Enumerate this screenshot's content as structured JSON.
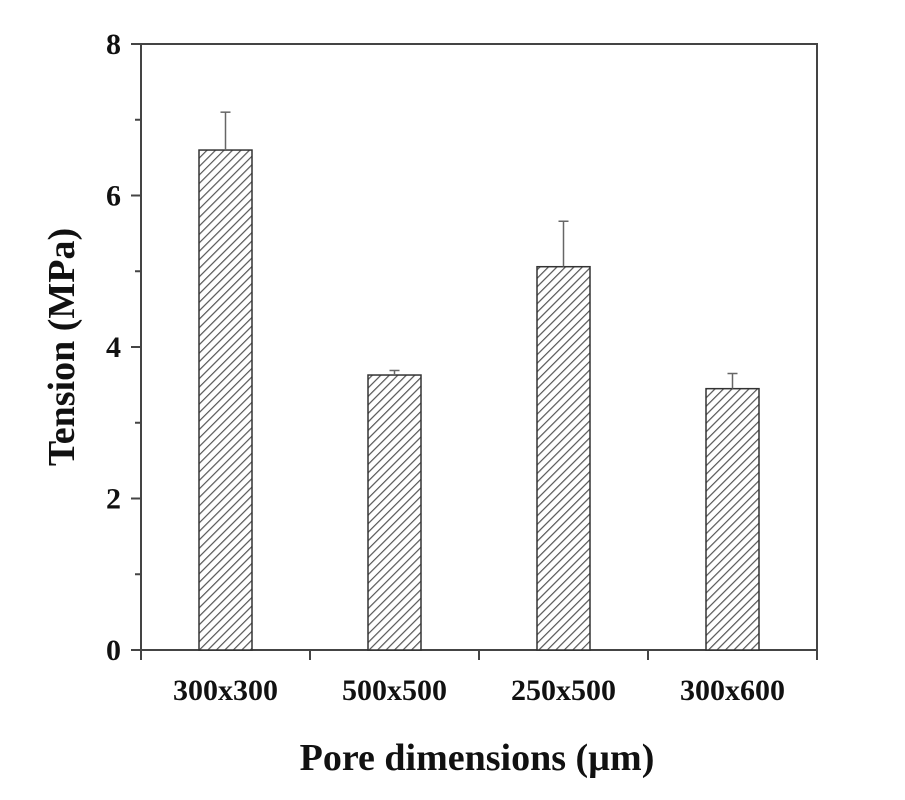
{
  "chart_data": {
    "type": "bar",
    "title": "",
    "xlabel": "Pore dimensions (µm)",
    "ylabel": "Tension (MPa)",
    "categories": [
      "300x300",
      "500x500",
      "250x500",
      "300x600"
    ],
    "values": [
      6.6,
      3.63,
      5.06,
      3.45
    ],
    "error_plus": [
      0.5,
      0.06,
      0.6,
      0.2
    ],
    "ylim": [
      0,
      8
    ],
    "yticks": [
      "0",
      "2",
      "4",
      "6",
      "8"
    ],
    "grid": false,
    "legend": "none",
    "bar_pattern": "diagonal-hatch",
    "colors": {
      "bar_fill": "#ffffff",
      "hatch": "#555555",
      "axis": "#444444",
      "text": "#111111"
    }
  }
}
